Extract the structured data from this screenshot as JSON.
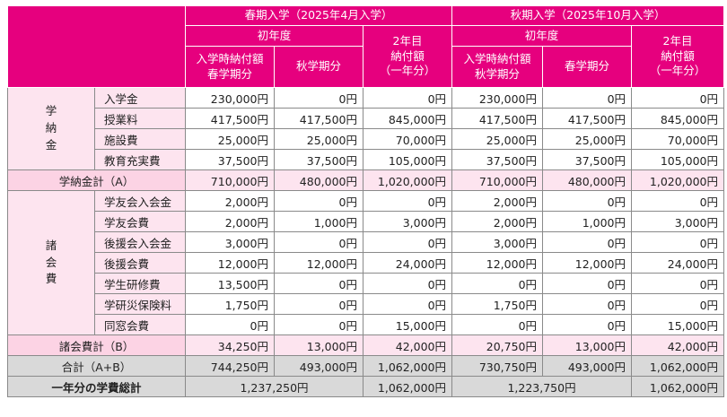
{
  "header": {
    "spring_title": "春期入学（2025年4月入学）",
    "autumn_title": "秋期入学（2025年10月入学）",
    "first_year": "初年度",
    "second_year_l1": "2年目",
    "second_year_l2": "納付額",
    "second_year_l3": "（一年分）",
    "spring_col1_l1": "入学時納付額",
    "spring_col1_l2": "春学期分",
    "spring_col2": "秋学期分",
    "autumn_col1_l1": "入学時納付額",
    "autumn_col1_l2": "秋学期分",
    "autumn_col2": "春学期分"
  },
  "tuition": {
    "group_chars": [
      "学",
      "納",
      "金"
    ],
    "rows": [
      {
        "label": "入学金",
        "values": [
          "230,000円",
          "0円",
          "0円",
          "230,000円",
          "0円",
          "0円"
        ]
      },
      {
        "label": "授業料",
        "values": [
          "417,500円",
          "417,500円",
          "845,000円",
          "417,500円",
          "417,500円",
          "845,000円"
        ]
      },
      {
        "label": "施設費",
        "values": [
          "25,000円",
          "25,000円",
          "70,000円",
          "25,000円",
          "25,000円",
          "70,000円"
        ]
      },
      {
        "label": "教育充実費",
        "values": [
          "37,500円",
          "37,500円",
          "105,000円",
          "37,500円",
          "37,500円",
          "105,000円"
        ]
      }
    ],
    "subtotal": {
      "label": "学納金計（A）",
      "values": [
        "710,000円",
        "480,000円",
        "1,020,000円",
        "710,000円",
        "480,000円",
        "1,020,000円"
      ]
    }
  },
  "fees": {
    "group_chars": [
      "諸",
      "会",
      "費"
    ],
    "rows": [
      {
        "label": "学友会入会金",
        "values": [
          "2,000円",
          "0円",
          "0円",
          "2,000円",
          "0円",
          "0円"
        ]
      },
      {
        "label": "学友会費",
        "values": [
          "2,000円",
          "1,000円",
          "3,000円",
          "2,000円",
          "1,000円",
          "3,000円"
        ]
      },
      {
        "label": "後援会入会金",
        "values": [
          "3,000円",
          "0円",
          "0円",
          "3,000円",
          "0円",
          "0円"
        ]
      },
      {
        "label": "後援会費",
        "values": [
          "12,000円",
          "12,000円",
          "24,000円",
          "12,000円",
          "12,000円",
          "24,000円"
        ]
      },
      {
        "label": "学生研修費",
        "values": [
          "13,500円",
          "0円",
          "0円",
          "0円",
          "0円",
          "0円"
        ]
      },
      {
        "label": "学研災保険料",
        "values": [
          "1,750円",
          "0円",
          "0円",
          "1,750円",
          "0円",
          "0円"
        ]
      },
      {
        "label": "同窓会費",
        "values": [
          "0円",
          "0円",
          "15,000円",
          "0円",
          "0円",
          "15,000円"
        ]
      }
    ],
    "subtotal": {
      "label": "諸会費計（B）",
      "values": [
        "34,250円",
        "13,000円",
        "42,000円",
        "20,750円",
        "13,000円",
        "42,000円"
      ]
    }
  },
  "total": {
    "label": "合計（A+B）",
    "values": [
      "744,250円",
      "493,000円",
      "1,062,000円",
      "730,750円",
      "493,000円",
      "1,062,000円"
    ]
  },
  "annual": {
    "label": "一年分の学費総計",
    "spring_first": "1,237,250円",
    "spring_second": "1,062,000円",
    "autumn_first": "1,223,750円",
    "autumn_second": "1,062,000円"
  }
}
